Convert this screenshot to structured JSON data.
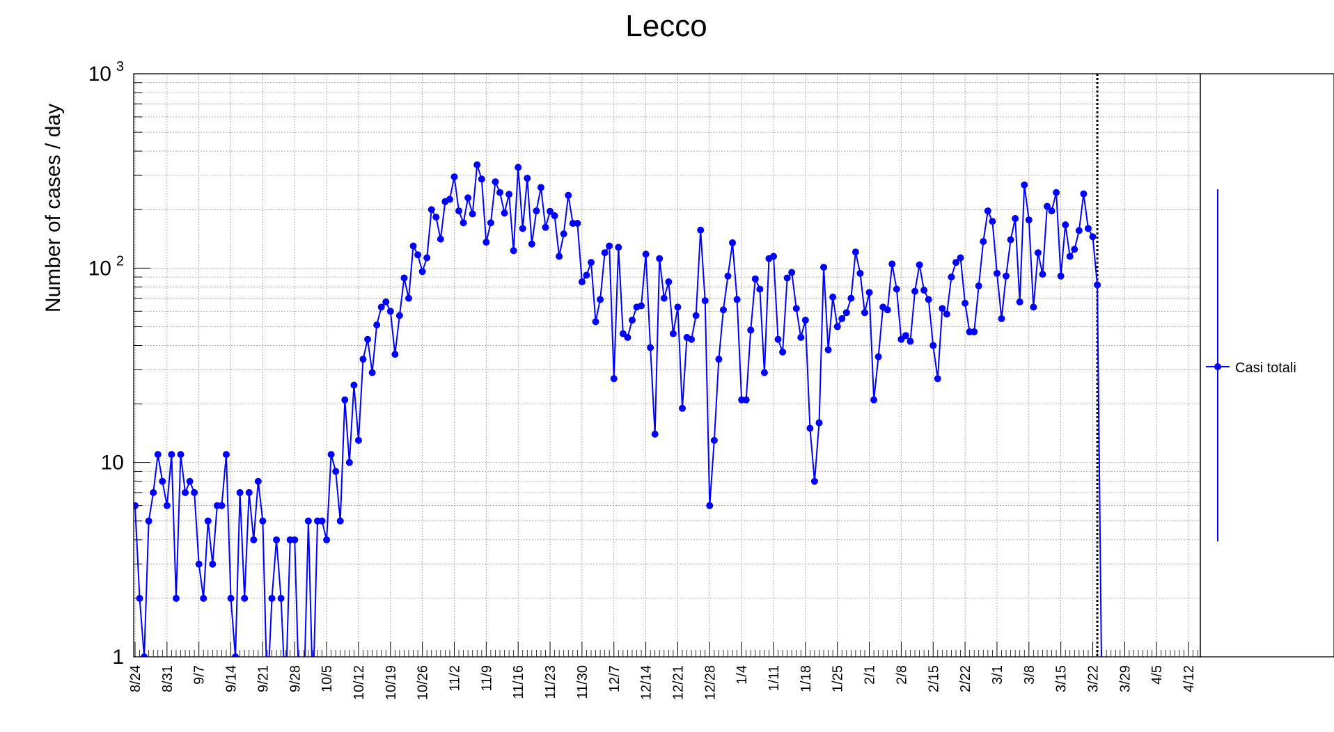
{
  "chart_data": {
    "type": "line",
    "title": "Lecco",
    "xlabel": "",
    "ylabel": "Number of cases / day",
    "y_scale": "log",
    "ylim": [
      1,
      1000
    ],
    "y_ticks": [
      {
        "value": 1,
        "label": "1"
      },
      {
        "value": 10,
        "label": "10"
      },
      {
        "value": 100,
        "label": "10",
        "exp": "2"
      },
      {
        "value": 1000,
        "label": "10",
        "exp": "3"
      }
    ],
    "grid": true,
    "legend": {
      "position": "right",
      "entries": [
        "Casi totali"
      ]
    },
    "x_tick_labels": [
      "8/24",
      "8/31",
      "9/7",
      "9/14",
      "9/21",
      "9/28",
      "10/5",
      "10/12",
      "10/19",
      "10/26",
      "11/2",
      "11/9",
      "11/16",
      "11/23",
      "11/30",
      "12/7",
      "12/14",
      "12/21",
      "12/28",
      "1/4",
      "1/11",
      "1/18",
      "1/25",
      "2/1",
      "2/8",
      "2/15",
      "2/22",
      "3/1",
      "3/8",
      "3/15",
      "3/22",
      "3/29",
      "4/5",
      "4/12"
    ],
    "date_range": [
      "8/24",
      "4/20"
    ],
    "marker_line_date": "3/22",
    "series": [
      {
        "name": "Casi totali",
        "color": "#0000ff",
        "start_date": "8/24",
        "values": [
          6,
          2,
          1,
          5,
          7,
          11,
          8,
          6,
          11,
          2,
          11,
          7,
          8,
          7,
          3,
          2,
          5,
          3,
          6,
          6,
          11,
          2,
          1,
          7,
          2,
          7,
          4,
          8,
          5,
          0,
          2,
          4,
          2,
          0,
          4,
          4,
          0,
          0,
          5,
          0,
          5,
          5,
          4,
          11,
          9,
          5,
          21,
          10,
          25,
          13,
          34,
          43,
          29,
          51,
          63,
          67,
          60,
          36,
          57,
          89,
          70,
          130,
          117,
          96,
          113,
          200,
          183,
          141,
          220,
          226,
          295,
          197,
          171,
          230,
          190,
          340,
          287,
          136,
          171,
          278,
          245,
          192,
          240,
          123,
          330,
          160,
          290,
          133,
          197,
          260,
          162,
          196,
          186,
          115,
          150,
          237,
          170,
          170,
          85,
          92,
          107,
          53,
          69,
          120,
          130,
          27,
          128,
          46,
          44,
          54,
          63,
          64,
          118,
          39,
          14,
          112,
          70,
          85,
          46,
          63,
          19,
          44,
          43,
          57,
          157,
          68,
          6,
          13,
          34,
          61,
          91,
          135,
          69,
          21,
          21,
          48,
          88,
          78,
          29,
          112,
          115,
          43,
          37,
          89,
          95,
          62,
          44,
          54,
          15,
          8,
          16,
          101,
          38,
          71,
          50,
          55,
          59,
          70,
          121,
          94,
          59,
          75,
          21,
          35,
          63,
          61,
          105,
          78,
          43,
          45,
          42,
          76,
          104,
          77,
          69,
          40,
          27,
          62,
          58,
          90,
          107,
          113,
          66,
          47,
          47,
          81,
          137,
          197,
          174,
          94,
          55,
          91,
          140,
          180,
          67,
          268,
          177,
          63,
          120,
          93,
          208,
          197,
          245,
          91,
          167,
          115,
          125,
          156,
          241,
          160,
          145,
          82
        ]
      }
    ]
  }
}
